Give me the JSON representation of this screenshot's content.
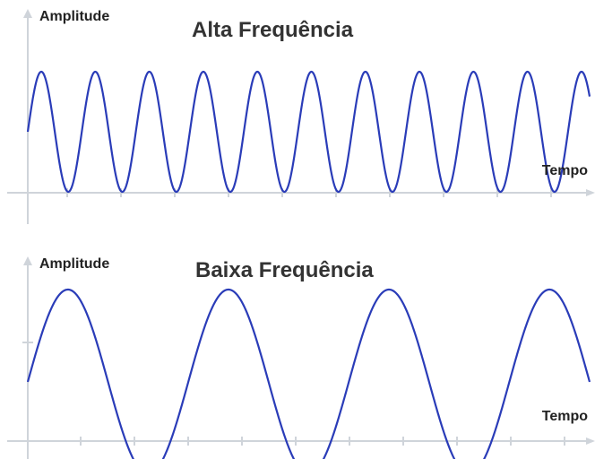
{
  "panels": {
    "high": {
      "title": "Alta Frequência",
      "ylabel": "Amplitude",
      "xlabel": "Tempo",
      "cycles": 10.4
    },
    "low": {
      "title": "Baixa Frequência",
      "ylabel": "Amplitude",
      "xlabel": "Tempo",
      "cycles": 3.5
    }
  },
  "colors": {
    "wave": "#2a3cb8",
    "axis": "#cfd4da",
    "text": "#222222"
  }
}
